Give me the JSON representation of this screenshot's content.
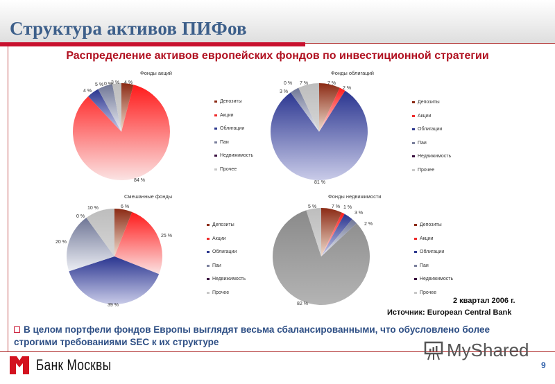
{
  "slide": {
    "title": "Структура активов ПИФов",
    "subtitle": "Распределение активов европейских фондов по инвестиционной стратегии",
    "period": "2 квартал 2006 г.",
    "source": "Источник: European Central Bank",
    "conclusion": "В целом портфели фондов Европы выглядят весьма сбалансированными, что обусловлено более строгими требованиями SEC  к их структуре",
    "bank_name": "Банк Москвы",
    "watermark": "MyShared",
    "page_number": "9"
  },
  "legend": {
    "items": [
      "Депозиты",
      "Акции",
      "Облигации",
      "Паи",
      "Недвижимость",
      "Прочее"
    ],
    "colors": [
      "#8b2a14",
      "#ee2a2a",
      "#2f3a8f",
      "#7a7f9c",
      "#3a1040",
      "#c8c8c8"
    ]
  },
  "chart_data": [
    {
      "type": "pie",
      "title": "Фонды акций",
      "categories": [
        "Депозиты",
        "Акции",
        "Облигации",
        "Паи",
        "Недвижимость",
        "Прочее"
      ],
      "values": [
        4,
        84,
        4,
        5,
        0,
        3
      ],
      "labels": [
        "4 %",
        "84 %",
        "4 %",
        "5 %",
        "0 %",
        "3 %"
      ],
      "unit": "%",
      "legend_position": "right"
    },
    {
      "type": "pie",
      "title": "Фонды облигаций",
      "categories": [
        "Депозиты",
        "Акции",
        "Облигации",
        "Паи",
        "Недвижимость",
        "Прочее"
      ],
      "values": [
        7,
        2,
        81,
        3,
        0,
        7
      ],
      "labels": [
        "7 %",
        "2 %",
        "81 %",
        "3 %",
        "0 %",
        "7 %"
      ],
      "unit": "%",
      "legend_position": "right"
    },
    {
      "type": "pie",
      "title": "Смешанные фонды",
      "categories": [
        "Депозиты",
        "Акции",
        "Облигации",
        "Паи",
        "Недвижимость",
        "Прочее"
      ],
      "values": [
        6,
        25,
        39,
        20,
        0,
        10
      ],
      "labels": [
        "6 %",
        "25 %",
        "39 %",
        "20 %",
        "0 %",
        "10 %"
      ],
      "unit": "%",
      "legend_position": "right"
    },
    {
      "type": "pie",
      "title": "Фонды недвижимости",
      "categories": [
        "Депозиты",
        "Акции",
        "Облигации",
        "Паи",
        "Недвижимость",
        "Прочее"
      ],
      "values": [
        7,
        1,
        3,
        2,
        82,
        5
      ],
      "labels": [
        "7 %",
        "1 %",
        "3 %",
        "2 %",
        "82 %",
        "5 %"
      ],
      "unit": "%",
      "legend_position": "right"
    }
  ]
}
